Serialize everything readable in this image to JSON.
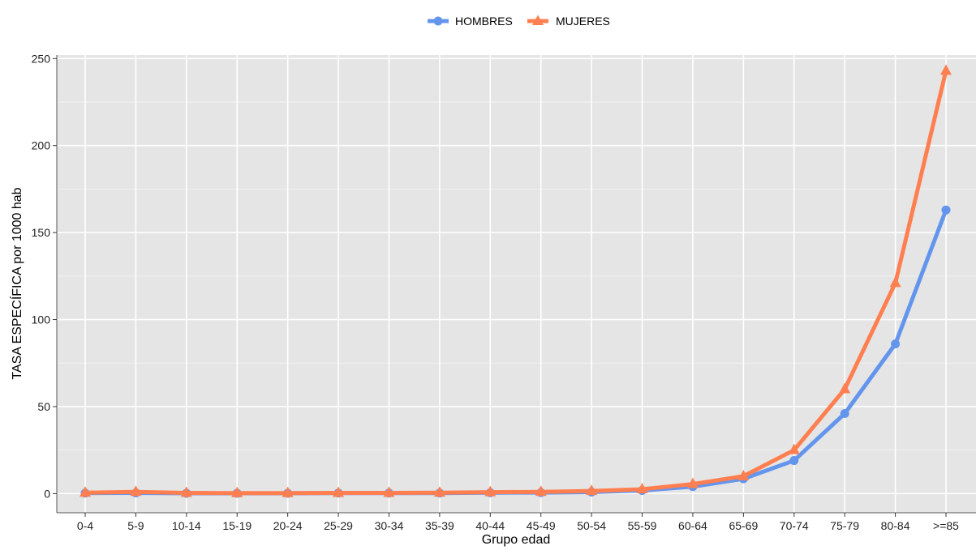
{
  "chart_data": {
    "type": "line",
    "xlabel": "Grupo edad",
    "ylabel": "TASA ESPECÍFICA por 1000 hab",
    "ylim": [
      -11,
      252
    ],
    "yticks": [
      0,
      50,
      100,
      150,
      200,
      250
    ],
    "categories": [
      "0-4",
      "5-9",
      "10-14",
      "15-19",
      "20-24",
      "25-29",
      "30-34",
      "35-39",
      "40-44",
      "45-49",
      "50-54",
      "55-59",
      "60-64",
      "65-69",
      "70-74",
      "75-79",
      "80-84",
      ">=85"
    ],
    "legend_position": "top",
    "grid": true,
    "series": [
      {
        "name": "HOMBRES",
        "color": "#6495ED",
        "marker": "circle",
        "values": [
          0.3,
          0.4,
          0.2,
          0.2,
          0.2,
          0.3,
          0.3,
          0.3,
          0.5,
          0.6,
          0.9,
          1.8,
          4.0,
          8.5,
          19.0,
          46.0,
          86.0,
          163.0
        ]
      },
      {
        "name": "MUJERES",
        "color": "#FF7F50",
        "marker": "triangle",
        "values": [
          0.5,
          1.0,
          0.4,
          0.3,
          0.3,
          0.4,
          0.4,
          0.5,
          0.8,
          1.0,
          1.5,
          2.5,
          5.5,
          10.0,
          25.0,
          60.0,
          121.0,
          243.0
        ]
      }
    ]
  }
}
